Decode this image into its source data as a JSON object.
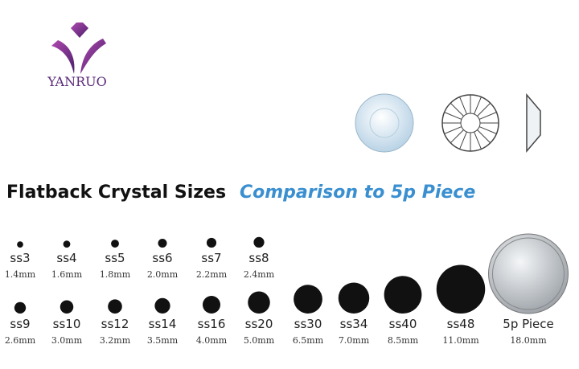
{
  "logo": "YANRUO",
  "title": "Flatback Crystal Sizes",
  "subtitle": "Comparison to 5p Piece",
  "rows": [
    [
      {
        "name": "ss3",
        "diameter_mm": 1.4,
        "label": "1.4mm"
      },
      {
        "name": "ss4",
        "diameter_mm": 1.6,
        "label": "1.6mm"
      },
      {
        "name": "ss5",
        "diameter_mm": 1.8,
        "label": "1.8mm"
      },
      {
        "name": "ss6",
        "diameter_mm": 2.0,
        "label": "2.0mm"
      },
      {
        "name": "ss7",
        "diameter_mm": 2.2,
        "label": "2.2mm"
      },
      {
        "name": "ss8",
        "diameter_mm": 2.4,
        "label": "2.4mm"
      }
    ],
    [
      {
        "name": "ss9",
        "diameter_mm": 2.6,
        "label": "2.6mm"
      },
      {
        "name": "ss10",
        "diameter_mm": 3.0,
        "label": "3.0mm"
      },
      {
        "name": "ss12",
        "diameter_mm": 3.2,
        "label": "3.2mm"
      },
      {
        "name": "ss14",
        "diameter_mm": 3.5,
        "label": "3.5mm"
      },
      {
        "name": "ss16",
        "diameter_mm": 4.0,
        "label": "4.0mm"
      },
      {
        "name": "ss20",
        "diameter_mm": 5.0,
        "label": "5.0mm"
      },
      {
        "name": "ss30",
        "diameter_mm": 6.5,
        "label": "6.5mm"
      },
      {
        "name": "ss34",
        "diameter_mm": 7.0,
        "label": "7.0mm"
      },
      {
        "name": "ss40",
        "diameter_mm": 8.5,
        "label": "8.5mm"
      },
      {
        "name": "ss48",
        "diameter_mm": 11.0,
        "label": "11.0mm"
      },
      {
        "name": "5p Piece",
        "diameter_mm": 18.0,
        "label": "18.0mm"
      }
    ]
  ]
}
